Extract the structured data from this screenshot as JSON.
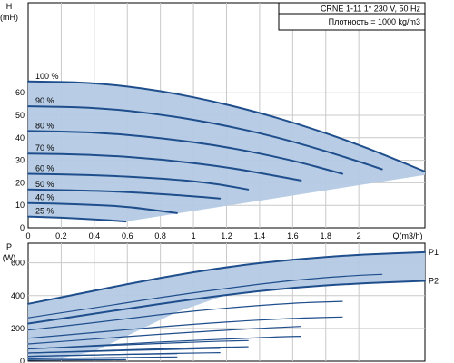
{
  "chart_data": [
    {
      "type": "line",
      "ylabel": "H",
      "yunit": "(mH)",
      "xlabel": "Q(m3/h)",
      "xlim": [
        0,
        2.4
      ],
      "ylim": [
        0,
        100
      ],
      "xticks": [
        0,
        0.2,
        0.4,
        0.6,
        0.8,
        1,
        1.2,
        1.4,
        1.6,
        1.8,
        2
      ],
      "xtick_labels": [
        "0",
        "0.2",
        "0.4",
        "0.6",
        "0.8",
        "1",
        "1.2",
        "1.4",
        "1.6",
        "1.8",
        "2"
      ],
      "yticks": [
        0,
        10,
        20,
        30,
        40,
        50,
        60
      ],
      "ytick_labels": [
        "0",
        "10",
        "20",
        "30",
        "40",
        "50",
        "60"
      ],
      "grid": true,
      "colors": {
        "curve": "#1f4e8c",
        "fill": "#b4cae4",
        "grid": "#c9c9c9"
      },
      "info_box": [
        "CRNE 1-11    1* 230 V, 50 Hz",
        "Плотность = 1000 kg/m3"
      ],
      "series": [
        {
          "name": "100 %",
          "x": [
            0,
            0.4,
            0.8,
            1.2,
            1.6,
            2.0,
            2.4
          ],
          "y": [
            65,
            64.5,
            61,
            55,
            47,
            37,
            25
          ]
        },
        {
          "name": "90 %",
          "x": [
            0,
            0.4,
            0.8,
            1.2,
            1.6,
            2.0,
            2.14
          ],
          "y": [
            54,
            53.5,
            50.5,
            45.5,
            38.5,
            29.5,
            26
          ]
        },
        {
          "name": "80 %",
          "x": [
            0,
            0.4,
            0.8,
            1.2,
            1.6,
            1.9
          ],
          "y": [
            43,
            42.5,
            40,
            36,
            30,
            24
          ]
        },
        {
          "name": "70 %",
          "x": [
            0,
            0.4,
            0.8,
            1.2,
            1.5,
            1.65
          ],
          "y": [
            33,
            32.5,
            30.5,
            27,
            23,
            21
          ]
        },
        {
          "name": "60 %",
          "x": [
            0,
            0.4,
            0.8,
            1.1,
            1.33
          ],
          "y": [
            24,
            23.5,
            22,
            20,
            17
          ]
        },
        {
          "name": "50 %",
          "x": [
            0,
            0.4,
            0.7,
            1.0,
            1.16
          ],
          "y": [
            17,
            16.5,
            15.5,
            14,
            13
          ]
        },
        {
          "name": "40 %",
          "x": [
            0,
            0.3,
            0.6,
            0.9
          ],
          "y": [
            11,
            10.5,
            9.5,
            6.5
          ]
        },
        {
          "name": "25 %",
          "x": [
            0,
            0.2,
            0.4,
            0.59
          ],
          "y": [
            5,
            4.5,
            3.8,
            2.8
          ]
        }
      ],
      "envelope": {
        "x": [
          0,
          0.4,
          0.8,
          1.2,
          1.6,
          2.0,
          2.4,
          2.4,
          0.59,
          0
        ],
        "y": [
          65,
          64.5,
          61,
          55,
          47,
          37,
          25,
          23.5,
          2.8,
          5
        ]
      }
    },
    {
      "type": "line",
      "ylabel": "P",
      "yunit": "(W)",
      "xlim": [
        0,
        2.4
      ],
      "ylim": [
        0,
        720
      ],
      "yticks": [
        0,
        200,
        400,
        600
      ],
      "ytick_labels": [
        "0",
        "200",
        "400",
        "600"
      ],
      "grid": true,
      "series": [
        {
          "name": "P1",
          "x": [
            0,
            0.4,
            0.8,
            1.2,
            1.6,
            2.0,
            2.4
          ],
          "y": [
            350,
            430,
            510,
            575,
            622,
            650,
            665
          ]
        },
        {
          "name": "P2",
          "x": [
            0,
            0.4,
            0.8,
            1.2,
            1.6,
            2.0,
            2.4
          ],
          "y": [
            230,
            290,
            350,
            405,
            450,
            475,
            490
          ]
        },
        {
          "x": [
            0,
            0.4,
            0.8,
            1.2,
            1.6,
            2.0,
            2.14
          ],
          "y": [
            265,
            325,
            390,
            445,
            495,
            525,
            530
          ]
        },
        {
          "x": [
            0,
            0.4,
            0.8,
            1.2,
            1.6,
            1.9
          ],
          "y": [
            190,
            235,
            285,
            325,
            355,
            365
          ]
        },
        {
          "x": [
            0,
            0.4,
            0.8,
            1.2,
            1.6,
            1.9
          ],
          "y": [
            140,
            175,
            210,
            240,
            262,
            270
          ]
        },
        {
          "x": [
            0,
            0.4,
            0.8,
            1.2,
            1.5,
            1.65
          ],
          "y": [
            105,
            135,
            165,
            190,
            206,
            212
          ]
        },
        {
          "x": [
            0,
            0.4,
            0.8,
            1.2,
            1.5,
            1.65
          ],
          "y": [
            75,
            95,
            118,
            135,
            148,
            152
          ]
        },
        {
          "x": [
            0,
            0.4,
            0.8,
            1.1,
            1.33
          ],
          "y": [
            75,
            92,
            108,
            120,
            126
          ]
        },
        {
          "x": [
            0,
            0.4,
            0.8,
            1.1,
            1.33
          ],
          "y": [
            50,
            63,
            75,
            84,
            88
          ]
        },
        {
          "x": [
            0,
            0.4,
            0.7,
            1.0,
            1.16
          ],
          "y": [
            50,
            60,
            68,
            75,
            78
          ]
        },
        {
          "x": [
            0,
            0.4,
            0.7,
            1.0,
            1.16
          ],
          "y": [
            30,
            38,
            44,
            50,
            52
          ]
        },
        {
          "x": [
            0,
            0.3,
            0.6,
            0.9
          ],
          "y": [
            30,
            36,
            42,
            46
          ]
        },
        {
          "x": [
            0,
            0.3,
            0.6,
            0.9
          ],
          "y": [
            15,
            19,
            23,
            26
          ]
        },
        {
          "x": [
            0,
            0.2,
            0.4,
            0.59
          ],
          "y": [
            15,
            16,
            18,
            20
          ]
        },
        {
          "x": [
            0,
            0.2,
            0.4,
            0.59
          ],
          "y": [
            6,
            7,
            8,
            9
          ]
        }
      ],
      "envelope": {
        "x": [
          0,
          0.4,
          0.8,
          1.2,
          1.6,
          2.0,
          2.4,
          2.4,
          2.0,
          1.6,
          1.2,
          0.9,
          0.59,
          0.4,
          0.2,
          0
        ],
        "y": [
          350,
          430,
          510,
          575,
          622,
          650,
          665,
          490,
          475,
          450,
          405,
          300,
          150,
          60,
          20,
          6
        ]
      }
    }
  ]
}
